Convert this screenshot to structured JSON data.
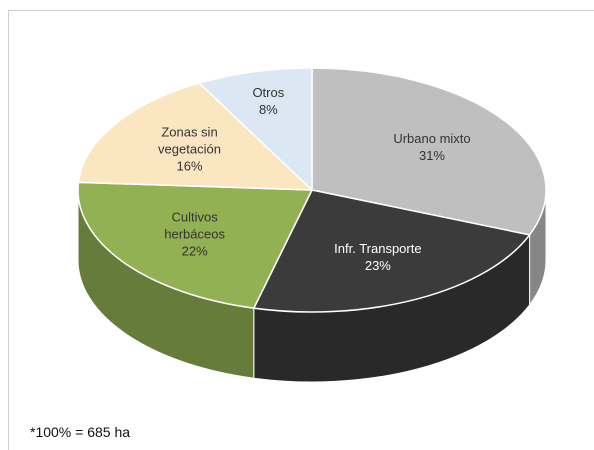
{
  "chart_data": {
    "type": "pie3d",
    "categories": [
      "Urbano mixto",
      "Infr. Transporte",
      "Cultivos herbáceos",
      "Zonas sin vegetación",
      "Otros"
    ],
    "values": [
      31,
      23,
      22,
      16,
      8
    ],
    "value_labels": [
      "31%",
      "23%",
      "22%",
      "16%",
      "8%"
    ],
    "colors": [
      "#bfbfbf",
      "#3b3b3b",
      "#92b153",
      "#fbe6c2",
      "#dbe7f3"
    ],
    "footnote": "*100% = 685 ha"
  }
}
